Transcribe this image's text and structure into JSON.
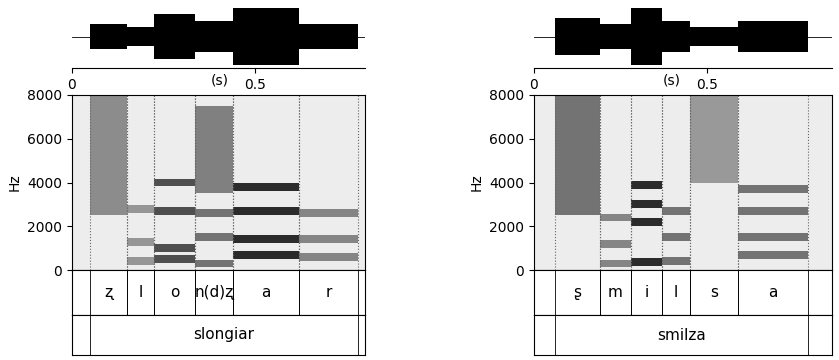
{
  "chart_data": [
    {
      "type": "spectrogram",
      "x_label": "(s)",
      "y_label": "Hz",
      "xlim": [
        0,
        0.8
      ],
      "xticks": [
        0,
        0.5
      ],
      "ylim": [
        0,
        8000
      ],
      "yticks": [
        0,
        2000,
        4000,
        6000,
        8000
      ],
      "waveform_ylim": [
        -1,
        1
      ],
      "tick_labels": "y",
      "word": "slongiar",
      "segments": [
        {
          "label": "ʐ",
          "start": 0.05,
          "end": 0.15,
          "amplitude": 0.4,
          "noise": [
            2500,
            8000
          ]
        },
        {
          "label": "l",
          "start": 0.15,
          "end": 0.225,
          "amplitude": 0.3,
          "formants": [
            400,
            1300,
            2800
          ]
        },
        {
          "label": "o",
          "start": 0.225,
          "end": 0.335,
          "amplitude": 0.7,
          "formants": [
            500,
            1000,
            2700,
            4000
          ]
        },
        {
          "label": "n(d)ʐ",
          "start": 0.335,
          "end": 0.44,
          "amplitude": 0.5,
          "formants": [
            300,
            1500,
            2600
          ],
          "noise": [
            3500,
            7500
          ]
        },
        {
          "label": "a",
          "start": 0.44,
          "end": 0.62,
          "amplitude": 0.9,
          "formants": [
            700,
            1400,
            2700,
            3800
          ]
        },
        {
          "label": "r",
          "start": 0.62,
          "end": 0.78,
          "amplitude": 0.4,
          "formants": [
            600,
            1400,
            2600
          ]
        }
      ]
    },
    {
      "type": "spectrogram",
      "x_label": "(s)",
      "y_label": "Hz",
      "xlim": [
        0,
        0.86
      ],
      "xticks": [
        0,
        0.5
      ],
      "ylim": [
        0,
        8000
      ],
      "yticks": [
        0,
        2000,
        4000,
        6000,
        8000
      ],
      "waveform_ylim": [
        -1,
        1
      ],
      "tick_labels": "y",
      "word": "smilza",
      "segments": [
        {
          "label": "ʂ",
          "start": 0.06,
          "end": 0.19,
          "amplitude": 0.6,
          "noise": [
            2500,
            8000
          ]
        },
        {
          "label": "m",
          "start": 0.19,
          "end": 0.28,
          "amplitude": 0.4,
          "formants": [
            300,
            1200,
            2400
          ]
        },
        {
          "label": "i",
          "start": 0.28,
          "end": 0.37,
          "amplitude": 0.9,
          "formants": [
            350,
            2200,
            3000,
            3900
          ]
        },
        {
          "label": "l",
          "start": 0.37,
          "end": 0.45,
          "amplitude": 0.5,
          "formants": [
            400,
            1500,
            2700
          ]
        },
        {
          "label": "s",
          "start": 0.45,
          "end": 0.59,
          "amplitude": 0.3,
          "noise": [
            4000,
            8000
          ]
        },
        {
          "label": "a",
          "start": 0.59,
          "end": 0.79,
          "amplitude": 0.5,
          "formants": [
            700,
            1500,
            2700,
            3700
          ]
        }
      ]
    }
  ]
}
